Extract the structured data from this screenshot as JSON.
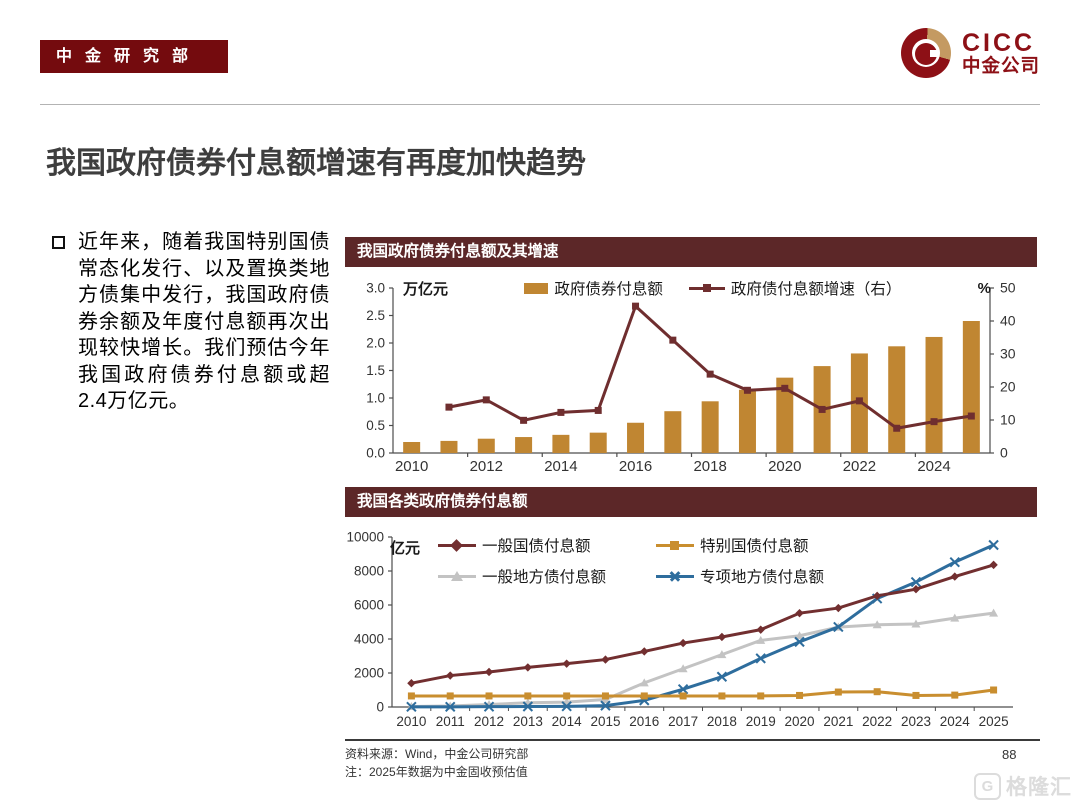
{
  "header": {
    "badge": "中金研究部",
    "logo": {
      "acronym": "CICC",
      "company": "中金公司"
    }
  },
  "title": "我国政府债券付息额增速有再度加快趋势",
  "note": "近年来，随着我国特别国债常态化发行、以及置换类地方债集中发行，我国政府债券余额及年度付息额再次出现较快增长。我们预估今年我国政府债券付息额或超2.4万亿元。",
  "footer": {
    "source": "资料来源：Wind，中金公司研究部",
    "note": "注：2025年数据为中金固收预估值",
    "page": "88",
    "watermark_letter": "G",
    "watermark": "格隆汇"
  },
  "colors": {
    "brand_red": "#740b0e",
    "logo_red": "#8d1016",
    "logo_gold": "#c49a62",
    "banner_maroon": "#5c2728",
    "bar_gold": "#c08632",
    "line_maroon": "#6f2e2f",
    "series_red": "#722f30",
    "series_gold": "#c98e2f",
    "series_gray": "#c3c3c3",
    "series_blue": "#2e6d9d"
  },
  "chart_data": [
    {
      "type": "bar+line",
      "title": "我国政府债券付息额及其增速",
      "categories": [
        2010,
        2011,
        2012,
        2013,
        2014,
        2015,
        2016,
        2017,
        2018,
        2019,
        2020,
        2021,
        2022,
        2023,
        2024,
        2025
      ],
      "x_label_every": 2,
      "bar_series": {
        "name": "政府债券付息额",
        "axis": "left",
        "color": "#c08632",
        "values": [
          0.2,
          0.22,
          0.26,
          0.29,
          0.33,
          0.37,
          0.55,
          0.76,
          0.94,
          1.15,
          1.37,
          1.58,
          1.81,
          1.94,
          2.11,
          2.4
        ]
      },
      "line_series": {
        "name": "政府债付息额增速（右）",
        "axis": "right",
        "color": "#6f2e2f",
        "values": [
          null,
          13.9,
          16.1,
          9.9,
          12.3,
          12.9,
          44.5,
          34.2,
          23.9,
          19.0,
          19.6,
          13.2,
          15.8,
          7.5,
          9.5,
          11.2
        ]
      },
      "left_axis": {
        "label": "万亿元",
        "min": 0,
        "max": 3.0,
        "step": 0.5
      },
      "right_axis": {
        "label": "%",
        "min": 0,
        "max": 50,
        "step": 10
      },
      "grid": false,
      "legend_position": "top"
    },
    {
      "type": "line",
      "title": "我国各类政府债券付息额",
      "categories": [
        2010,
        2011,
        2012,
        2013,
        2014,
        2015,
        2016,
        2017,
        2018,
        2019,
        2020,
        2021,
        2022,
        2023,
        2024,
        2025
      ],
      "y_axis": {
        "label": "亿元",
        "min": 0,
        "max": 10000,
        "step": 2000
      },
      "grid": false,
      "legend_position": "top",
      "series": [
        {
          "name": "一般国债付息额",
          "marker": "diamond",
          "color": "#722f30",
          "values": [
            1400,
            1850,
            2060,
            2330,
            2550,
            2790,
            3270,
            3760,
            4120,
            4550,
            5520,
            5820,
            6540,
            6930,
            7670,
            8360
          ]
        },
        {
          "name": "特别国债付息额",
          "marker": "square",
          "color": "#c98e2f",
          "values": [
            650,
            650,
            650,
            650,
            650,
            650,
            650,
            650,
            650,
            650,
            680,
            880,
            900,
            680,
            700,
            1000
          ]
        },
        {
          "name": "一般地方债付息额",
          "marker": "triangle",
          "color": "#c3c3c3",
          "values": [
            30,
            60,
            150,
            250,
            290,
            440,
            1420,
            2250,
            3080,
            3920,
            4190,
            4700,
            4840,
            4880,
            5230,
            5520
          ]
        },
        {
          "name": "专项地方债付息额",
          "marker": "x",
          "color": "#2e6d9d",
          "values": [
            10,
            10,
            20,
            30,
            40,
            80,
            390,
            1050,
            1780,
            2860,
            3830,
            4710,
            6380,
            7350,
            8520,
            9530
          ]
        }
      ]
    }
  ]
}
